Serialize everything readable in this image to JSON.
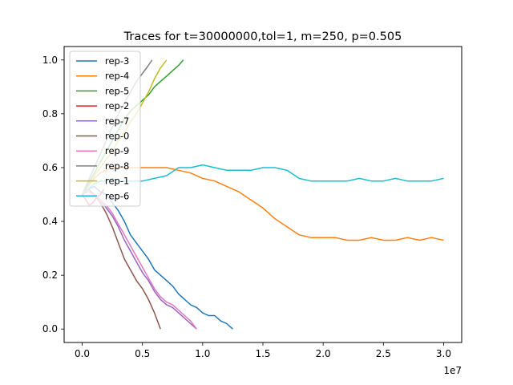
{
  "chart_data": {
    "type": "line",
    "title": "Traces for t=30000000,tol=1, m=250, p=0.505",
    "xlabel": "",
    "ylabel": "",
    "x_offset_label": "1e7",
    "xlim": [
      -1500000,
      31500000
    ],
    "ylim": [
      -0.05,
      1.05
    ],
    "x_ticks": [
      0,
      5000000,
      10000000,
      15000000,
      20000000,
      25000000,
      30000000
    ],
    "x_tick_labels": [
      "0.0",
      "0.5",
      "1.0",
      "1.5",
      "2.0",
      "2.5",
      "3.0"
    ],
    "y_ticks": [
      0.0,
      0.2,
      0.4,
      0.6,
      0.8,
      1.0
    ],
    "y_tick_labels": [
      "0.0",
      "0.2",
      "0.4",
      "0.6",
      "0.8",
      "1.0"
    ],
    "grid": false,
    "legend_position": "upper-left",
    "series": [
      {
        "name": "rep-3",
        "color": "#1f77b4",
        "x": [
          0,
          500000,
          1000000,
          1500000,
          2000000,
          2500000,
          3000000,
          3500000,
          4000000,
          4500000,
          5000000,
          5500000,
          6000000,
          6500000,
          7000000,
          7500000,
          8000000,
          8500000,
          9000000,
          9500000,
          10000000,
          10500000,
          11000000,
          11500000,
          12000000,
          12500000
        ],
        "y": [
          0.5,
          0.52,
          0.53,
          0.51,
          0.5,
          0.47,
          0.44,
          0.4,
          0.35,
          0.32,
          0.29,
          0.26,
          0.22,
          0.2,
          0.18,
          0.16,
          0.13,
          0.11,
          0.09,
          0.08,
          0.06,
          0.05,
          0.05,
          0.03,
          0.02,
          0.0
        ]
      },
      {
        "name": "rep-4",
        "color": "#ff7f0e",
        "x": [
          0,
          500000,
          1000000,
          1500000,
          2000000,
          2500000,
          3000000,
          4000000,
          5000000,
          6000000,
          7000000,
          8000000,
          9000000,
          10000000,
          11000000,
          12000000,
          13000000,
          14000000,
          15000000,
          16000000,
          17000000,
          18000000,
          19000000,
          20000000,
          21000000,
          22000000,
          23000000,
          24000000,
          25000000,
          26000000,
          27000000,
          28000000,
          29000000,
          30000000
        ],
        "y": [
          0.5,
          0.53,
          0.56,
          0.58,
          0.59,
          0.6,
          0.6,
          0.6,
          0.6,
          0.6,
          0.6,
          0.59,
          0.58,
          0.56,
          0.55,
          0.53,
          0.51,
          0.48,
          0.45,
          0.41,
          0.38,
          0.35,
          0.34,
          0.34,
          0.34,
          0.33,
          0.33,
          0.34,
          0.33,
          0.33,
          0.34,
          0.33,
          0.34,
          0.33
        ]
      },
      {
        "name": "rep-5",
        "color": "#2ca02c",
        "x": [
          0,
          500000,
          1000000,
          1500000,
          2000000,
          2500000,
          3000000,
          3500000,
          4000000,
          4500000,
          5000000,
          5500000,
          6000000,
          6500000,
          7000000,
          7500000,
          8000000,
          8400000
        ],
        "y": [
          0.5,
          0.54,
          0.58,
          0.62,
          0.66,
          0.7,
          0.74,
          0.78,
          0.81,
          0.83,
          0.85,
          0.87,
          0.9,
          0.92,
          0.94,
          0.96,
          0.98,
          1.0
        ]
      },
      {
        "name": "rep-2",
        "color": "#d62728",
        "x": [
          0,
          300000,
          600000,
          900000,
          1200000,
          1500000,
          1800000
        ],
        "y": [
          0.5,
          0.48,
          0.46,
          0.47,
          0.49,
          0.5,
          0.52
        ]
      },
      {
        "name": "rep-7",
        "color": "#9467bd",
        "x": [
          0,
          500000,
          1000000,
          1500000,
          2000000,
          2500000,
          3000000,
          3500000,
          4000000,
          4500000,
          5000000,
          5500000,
          6000000,
          6500000,
          7000000,
          7500000,
          8000000,
          8500000,
          9000000,
          9500000
        ],
        "y": [
          0.5,
          0.51,
          0.5,
          0.48,
          0.45,
          0.42,
          0.38,
          0.33,
          0.29,
          0.25,
          0.21,
          0.18,
          0.14,
          0.11,
          0.09,
          0.08,
          0.06,
          0.04,
          0.02,
          0.0
        ]
      },
      {
        "name": "rep-0",
        "color": "#8c564b",
        "x": [
          0,
          500000,
          1000000,
          1500000,
          2000000,
          2500000,
          3000000,
          3500000,
          4000000,
          4500000,
          5000000,
          5500000,
          6000000,
          6500000
        ],
        "y": [
          0.5,
          0.52,
          0.5,
          0.47,
          0.43,
          0.38,
          0.32,
          0.26,
          0.22,
          0.18,
          0.15,
          0.11,
          0.06,
          0.0
        ]
      },
      {
        "name": "rep-9",
        "color": "#e377c2",
        "x": [
          0,
          500000,
          1000000,
          1500000,
          2000000,
          2500000,
          3000000,
          3500000,
          4000000,
          4500000,
          5000000,
          5500000,
          6000000,
          6500000,
          7000000,
          7500000,
          8000000,
          8500000,
          9000000,
          9500000
        ],
        "y": [
          0.5,
          0.51,
          0.5,
          0.48,
          0.46,
          0.43,
          0.39,
          0.35,
          0.31,
          0.27,
          0.23,
          0.19,
          0.15,
          0.12,
          0.1,
          0.09,
          0.07,
          0.05,
          0.03,
          0.0
        ]
      },
      {
        "name": "rep-8",
        "color": "#7f7f7f",
        "x": [
          0,
          500000,
          1000000,
          1500000,
          2000000,
          2500000,
          3000000,
          3500000,
          4000000,
          4500000,
          5000000,
          5500000,
          5800000
        ],
        "y": [
          0.5,
          0.55,
          0.6,
          0.65,
          0.7,
          0.75,
          0.8,
          0.84,
          0.88,
          0.92,
          0.95,
          0.98,
          1.0
        ]
      },
      {
        "name": "rep-1",
        "color": "#bcbd22",
        "x": [
          0,
          500000,
          1000000,
          1500000,
          2000000,
          2500000,
          3000000,
          3500000,
          4000000,
          4500000,
          5000000,
          5500000,
          6000000,
          6500000,
          7000000
        ],
        "y": [
          0.5,
          0.53,
          0.57,
          0.6,
          0.63,
          0.66,
          0.7,
          0.73,
          0.77,
          0.8,
          0.84,
          0.88,
          0.93,
          0.97,
          1.0
        ]
      },
      {
        "name": "rep-6",
        "color": "#17becf",
        "x": [
          0,
          500000,
          1000000,
          1500000,
          2000000,
          2500000,
          3000000,
          4000000,
          5000000,
          6000000,
          7000000,
          8000000,
          9000000,
          10000000,
          11000000,
          12000000,
          13000000,
          14000000,
          15000000,
          16000000,
          17000000,
          18000000,
          19000000,
          20000000,
          21000000,
          22000000,
          23000000,
          24000000,
          25000000,
          26000000,
          27000000,
          28000000,
          29000000,
          30000000
        ],
        "y": [
          0.5,
          0.52,
          0.54,
          0.55,
          0.55,
          0.56,
          0.55,
          0.55,
          0.55,
          0.56,
          0.57,
          0.6,
          0.6,
          0.61,
          0.6,
          0.59,
          0.59,
          0.59,
          0.6,
          0.6,
          0.59,
          0.56,
          0.55,
          0.55,
          0.55,
          0.55,
          0.56,
          0.55,
          0.55,
          0.56,
          0.55,
          0.55,
          0.55,
          0.56
        ]
      }
    ]
  }
}
